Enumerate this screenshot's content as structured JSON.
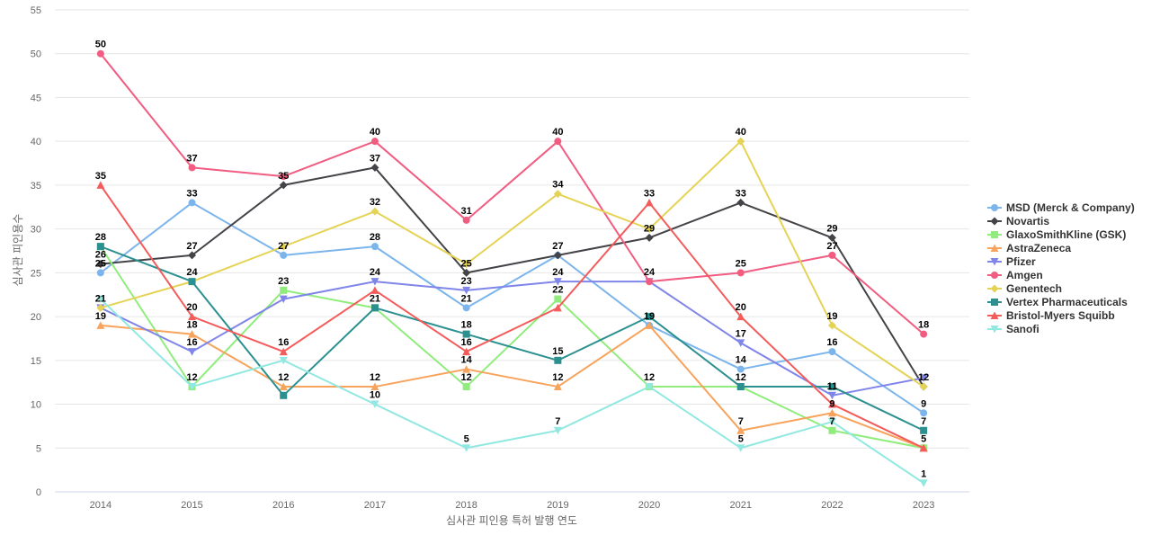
{
  "chart_data": {
    "type": "line",
    "xlabel": "심사관 피인용 특허 발행 연도",
    "ylabel": "심사관 피인용수",
    "x": [
      "2014",
      "2015",
      "2016",
      "2017",
      "2018",
      "2019",
      "2020",
      "2021",
      "2022",
      "2023"
    ],
    "ylim": [
      0,
      55
    ],
    "yticks": [
      0,
      5,
      10,
      15,
      20,
      25,
      30,
      35,
      40,
      45,
      50,
      55
    ],
    "grid": true,
    "legend_position": "right",
    "series": [
      {
        "name": "MSD (Merck & Company)",
        "color": "#7cb5ec",
        "marker": "circle",
        "values": [
          25,
          33,
          27,
          28,
          21,
          27,
          19,
          14,
          16,
          9
        ]
      },
      {
        "name": "Novartis",
        "color": "#434348",
        "marker": "diamond",
        "values": [
          26,
          27,
          35,
          37,
          25,
          27,
          29,
          33,
          29,
          12
        ]
      },
      {
        "name": "GlaxoSmithKline (GSK)",
        "color": "#90ed7d",
        "marker": "square",
        "values": [
          28,
          12,
          23,
          21,
          12,
          22,
          12,
          12,
          7,
          5
        ]
      },
      {
        "name": "AstraZeneca",
        "color": "#f7a35c",
        "marker": "triangle",
        "values": [
          19,
          18,
          12,
          12,
          14,
          12,
          19,
          7,
          9,
          5
        ]
      },
      {
        "name": "Pfizer",
        "color": "#8085e9",
        "marker": "triangle-down",
        "values": [
          21,
          16,
          22,
          24,
          23,
          24,
          24,
          17,
          11,
          13
        ]
      },
      {
        "name": "Amgen",
        "color": "#f15c80",
        "marker": "circle",
        "values": [
          50,
          37,
          36,
          40,
          31,
          40,
          24,
          25,
          27,
          18
        ]
      },
      {
        "name": "Genentech",
        "color": "#e4d354",
        "marker": "diamond",
        "values": [
          21,
          24,
          28,
          32,
          26,
          34,
          30,
          40,
          19,
          12
        ]
      },
      {
        "name": "Vertex Pharmaceuticals",
        "color": "#2b908f",
        "marker": "square",
        "values": [
          28,
          24,
          11,
          21,
          18,
          15,
          20,
          12,
          12,
          7
        ]
      },
      {
        "name": "Bristol-Myers Squibb",
        "color": "#f45b5b",
        "marker": "triangle",
        "values": [
          35,
          20,
          16,
          23,
          16,
          21,
          33,
          20,
          10,
          5
        ]
      },
      {
        "name": "Sanofi",
        "color": "#91e8e1",
        "marker": "triangle-down",
        "values": [
          22,
          12,
          15,
          10,
          5,
          7,
          12,
          5,
          8,
          1
        ]
      }
    ],
    "data_labels": [
      {
        "x": "2014",
        "y": 50,
        "text": "50"
      },
      {
        "x": "2014",
        "y": 35,
        "text": "35"
      },
      {
        "x": "2014",
        "y": 28,
        "text": "28"
      },
      {
        "x": "2014",
        "y": 26,
        "text": "26"
      },
      {
        "x": "2014",
        "y": 25,
        "text": "25"
      },
      {
        "x": "2014",
        "y": 21,
        "text": "21"
      },
      {
        "x": "2014",
        "y": 19,
        "text": "19"
      },
      {
        "x": "2015",
        "y": 37,
        "text": "37"
      },
      {
        "x": "2015",
        "y": 33,
        "text": "33"
      },
      {
        "x": "2015",
        "y": 27,
        "text": "27"
      },
      {
        "x": "2015",
        "y": 24,
        "text": "24"
      },
      {
        "x": "2015",
        "y": 20,
        "text": "20"
      },
      {
        "x": "2015",
        "y": 18,
        "text": "18"
      },
      {
        "x": "2015",
        "y": 16,
        "text": "16"
      },
      {
        "x": "2015",
        "y": 12,
        "text": "12"
      },
      {
        "x": "2016",
        "y": 35,
        "text": "35"
      },
      {
        "x": "2016",
        "y": 27,
        "text": "27"
      },
      {
        "x": "2016",
        "y": 23,
        "text": "23"
      },
      {
        "x": "2016",
        "y": 16,
        "text": "16"
      },
      {
        "x": "2016",
        "y": 12,
        "text": "12"
      },
      {
        "x": "2017",
        "y": 40,
        "text": "40"
      },
      {
        "x": "2017",
        "y": 37,
        "text": "37"
      },
      {
        "x": "2017",
        "y": 32,
        "text": "32"
      },
      {
        "x": "2017",
        "y": 28,
        "text": "28"
      },
      {
        "x": "2017",
        "y": 24,
        "text": "24"
      },
      {
        "x": "2017",
        "y": 21,
        "text": "21"
      },
      {
        "x": "2017",
        "y": 12,
        "text": "12"
      },
      {
        "x": "2017",
        "y": 10,
        "text": "10"
      },
      {
        "x": "2018",
        "y": 31,
        "text": "31"
      },
      {
        "x": "2018",
        "y": 25,
        "text": "25"
      },
      {
        "x": "2018",
        "y": 23,
        "text": "23"
      },
      {
        "x": "2018",
        "y": 21,
        "text": "21"
      },
      {
        "x": "2018",
        "y": 18,
        "text": "18"
      },
      {
        "x": "2018",
        "y": 16,
        "text": "16"
      },
      {
        "x": "2018",
        "y": 14,
        "text": "14"
      },
      {
        "x": "2018",
        "y": 12,
        "text": "12"
      },
      {
        "x": "2018",
        "y": 5,
        "text": "5"
      },
      {
        "x": "2019",
        "y": 40,
        "text": "40"
      },
      {
        "x": "2019",
        "y": 34,
        "text": "34"
      },
      {
        "x": "2019",
        "y": 27,
        "text": "27"
      },
      {
        "x": "2019",
        "y": 24,
        "text": "24"
      },
      {
        "x": "2019",
        "y": 22,
        "text": "22"
      },
      {
        "x": "2019",
        "y": 15,
        "text": "15"
      },
      {
        "x": "2019",
        "y": 12,
        "text": "12"
      },
      {
        "x": "2019",
        "y": 7,
        "text": "7"
      },
      {
        "x": "2020",
        "y": 33,
        "text": "33"
      },
      {
        "x": "2020",
        "y": 29,
        "text": "29"
      },
      {
        "x": "2020",
        "y": 24,
        "text": "24"
      },
      {
        "x": "2020",
        "y": 19,
        "text": "19"
      },
      {
        "x": "2020",
        "y": 12,
        "text": "12"
      },
      {
        "x": "2021",
        "y": 40,
        "text": "40"
      },
      {
        "x": "2021",
        "y": 33,
        "text": "33"
      },
      {
        "x": "2021",
        "y": 25,
        "text": "25"
      },
      {
        "x": "2021",
        "y": 20,
        "text": "20"
      },
      {
        "x": "2021",
        "y": 17,
        "text": "17"
      },
      {
        "x": "2021",
        "y": 14,
        "text": "14"
      },
      {
        "x": "2021",
        "y": 12,
        "text": "12"
      },
      {
        "x": "2021",
        "y": 7,
        "text": "7"
      },
      {
        "x": "2021",
        "y": 5,
        "text": "5"
      },
      {
        "x": "2022",
        "y": 29,
        "text": "29"
      },
      {
        "x": "2022",
        "y": 27,
        "text": "27"
      },
      {
        "x": "2022",
        "y": 19,
        "text": "19"
      },
      {
        "x": "2022",
        "y": 16,
        "text": "16"
      },
      {
        "x": "2022",
        "y": 11,
        "text": "11"
      },
      {
        "x": "2022",
        "y": 9,
        "text": "9"
      },
      {
        "x": "2022",
        "y": 7,
        "text": "7"
      },
      {
        "x": "2023",
        "y": 18,
        "text": "18"
      },
      {
        "x": "2023",
        "y": 12,
        "text": "12"
      },
      {
        "x": "2023",
        "y": 9,
        "text": "9"
      },
      {
        "x": "2023",
        "y": 7,
        "text": "7"
      },
      {
        "x": "2023",
        "y": 5,
        "text": "5"
      },
      {
        "x": "2023",
        "y": 1,
        "text": "1"
      }
    ]
  }
}
